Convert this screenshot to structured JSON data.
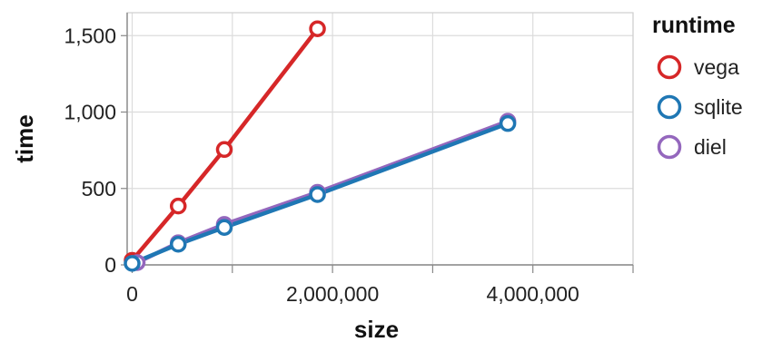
{
  "chart_data": {
    "type": "line",
    "xlabel": "size",
    "ylabel": "time",
    "xlim": [
      -50000,
      5000000
    ],
    "ylim": [
      0,
      1650
    ],
    "x_ticks": [
      0,
      1000000,
      2000000,
      3000000,
      4000000,
      5000000
    ],
    "x_tick_labels": [
      "0",
      "2,000,000",
      "4,000,000"
    ],
    "x_tick_label_values": [
      0,
      2000000,
      4000000
    ],
    "y_ticks": [
      0,
      500,
      1000,
      1500
    ],
    "y_tick_labels": [
      "0",
      "500",
      "1,000",
      "1,500"
    ],
    "grid": true,
    "legend": {
      "title": "runtime",
      "position": "right",
      "entries": [
        {
          "name": "vega",
          "color": "#d62728"
        },
        {
          "name": "sqlite",
          "color": "#1f77b4"
        },
        {
          "name": "diel",
          "color": "#9467bd"
        }
      ]
    },
    "series": [
      {
        "name": "vega",
        "color": "#d62728",
        "x": [
          0,
          460000,
          920000,
          1850000
        ],
        "y": [
          30,
          385,
          755,
          1545
        ]
      },
      {
        "name": "diel",
        "color": "#9467bd",
        "x": [
          50000,
          460000,
          920000,
          1850000,
          3750000
        ],
        "y": [
          15,
          145,
          265,
          475,
          940
        ]
      },
      {
        "name": "sqlite",
        "color": "#1f77b4",
        "x": [
          0,
          460000,
          920000,
          1850000,
          3750000
        ],
        "y": [
          10,
          135,
          245,
          460,
          925
        ]
      }
    ]
  }
}
